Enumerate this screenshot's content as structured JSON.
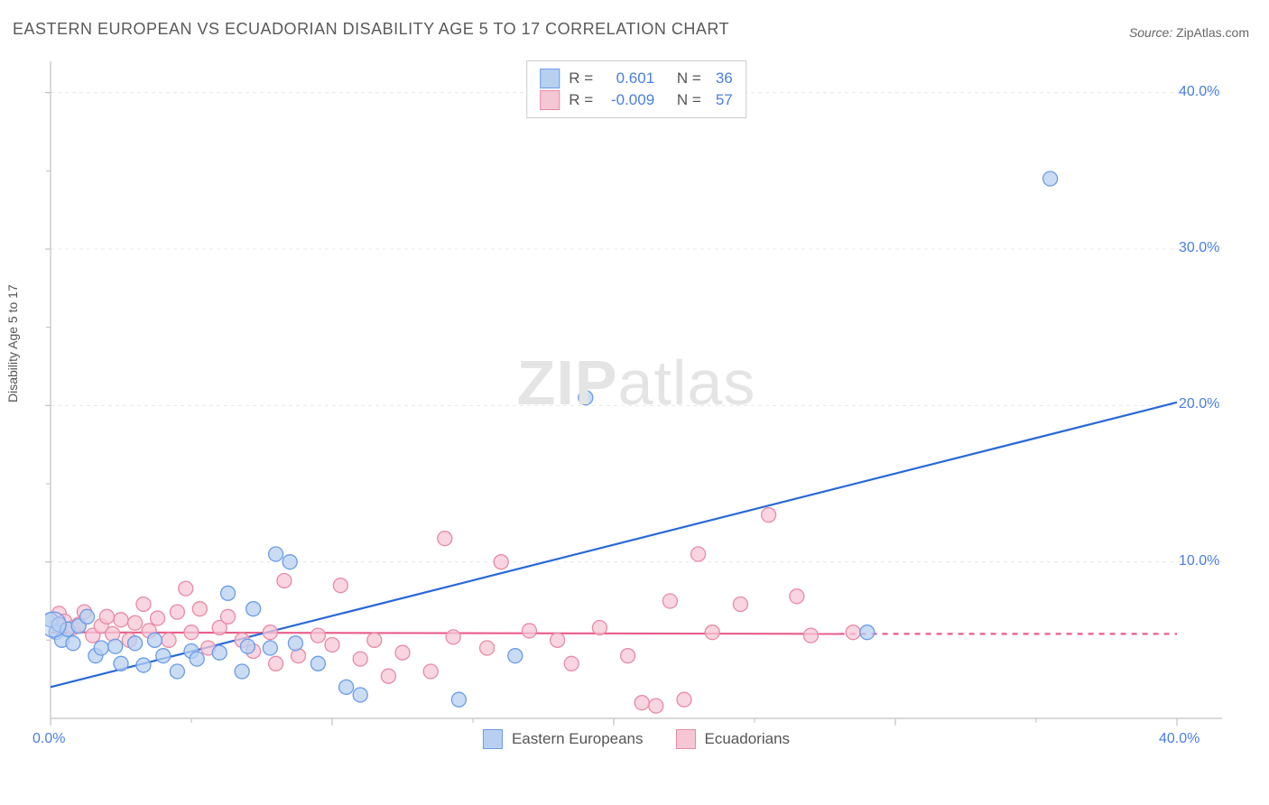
{
  "title": "EASTERN EUROPEAN VS ECUADORIAN DISABILITY AGE 5 TO 17 CORRELATION CHART",
  "source_label": "Source:",
  "source_name": "ZipAtlas.com",
  "watermark_zip": "ZIP",
  "watermark_atlas": "atlas",
  "y_axis_label": "Disability Age 5 to 17",
  "chart": {
    "type": "scatter",
    "background_color": "#ffffff",
    "grid_color": "#e8e8e8",
    "axis_line_color": "#c0c0c0",
    "tick_color": "#c0c0c0",
    "xlim": [
      0,
      40
    ],
    "ylim": [
      0,
      42
    ],
    "x_ticks": [
      0,
      10,
      20,
      30,
      40
    ],
    "x_tick_labels": [
      "0.0%",
      "",
      "",
      "",
      "40.0%"
    ],
    "y_ticks": [
      10,
      20,
      30,
      40
    ],
    "y_tick_labels": [
      "10.0%",
      "20.0%",
      "30.0%",
      "40.0%"
    ],
    "x_minor_ticks": [
      5,
      15,
      25,
      35
    ],
    "y_minor_ticks": [
      5,
      15,
      25,
      35
    ],
    "series": {
      "eastern": {
        "label": "Eastern Europeans",
        "fill_color": "#b8d0f0",
        "stroke_color": "#6b9be8",
        "marker_radius": 8,
        "marker_opacity": 0.75,
        "R_label": "R =",
        "R_value": "0.601",
        "N_label": "N =",
        "N_value": "36",
        "trend": {
          "x1": 0,
          "y1": 2.0,
          "x2": 40,
          "y2": 20.2,
          "color": "#2968d9",
          "width": 2.2
        },
        "points": [
          [
            0.0,
            6.3
          ],
          [
            0.2,
            5.5
          ],
          [
            0.3,
            6.0
          ],
          [
            0.4,
            5.0
          ],
          [
            0.6,
            5.7
          ],
          [
            0.8,
            4.8
          ],
          [
            1.0,
            5.9
          ],
          [
            1.3,
            6.5
          ],
          [
            1.6,
            4.0
          ],
          [
            1.8,
            4.5
          ],
          [
            2.3,
            4.6
          ],
          [
            2.5,
            3.5
          ],
          [
            3.0,
            4.8
          ],
          [
            3.3,
            3.4
          ],
          [
            3.7,
            5.0
          ],
          [
            4.0,
            4.0
          ],
          [
            4.5,
            3.0
          ],
          [
            5.0,
            4.3
          ],
          [
            5.2,
            3.8
          ],
          [
            6.0,
            4.2
          ],
          [
            6.3,
            8.0
          ],
          [
            6.8,
            3.0
          ],
          [
            7.0,
            4.6
          ],
          [
            7.2,
            7.0
          ],
          [
            7.8,
            4.5
          ],
          [
            8.0,
            10.5
          ],
          [
            8.5,
            10.0
          ],
          [
            8.7,
            4.8
          ],
          [
            9.5,
            3.5
          ],
          [
            10.5,
            2.0
          ],
          [
            11.0,
            1.5
          ],
          [
            14.5,
            1.2
          ],
          [
            16.5,
            4.0
          ],
          [
            19.0,
            20.5
          ],
          [
            29.0,
            5.5
          ],
          [
            35.5,
            34.5
          ]
        ]
      },
      "ecuador": {
        "label": "Ecuadorians",
        "fill_color": "#f5c7d5",
        "stroke_color": "#e88aa5",
        "marker_radius": 8,
        "marker_opacity": 0.75,
        "R_label": "R =",
        "R_value": "-0.009",
        "N_label": "N =",
        "N_value": "57",
        "trend": {
          "x1": 0,
          "y1": 5.5,
          "x2": 28,
          "y2": 5.4,
          "color": "#e85d8a",
          "width": 2.2,
          "dash_from_x": 28,
          "dash_to_x": 40
        },
        "points": [
          [
            0.3,
            6.7
          ],
          [
            0.5,
            6.2
          ],
          [
            0.8,
            5.8
          ],
          [
            1.0,
            6.0
          ],
          [
            1.2,
            6.8
          ],
          [
            1.5,
            5.3
          ],
          [
            1.8,
            5.9
          ],
          [
            2.0,
            6.5
          ],
          [
            2.2,
            5.4
          ],
          [
            2.5,
            6.3
          ],
          [
            2.8,
            5.0
          ],
          [
            3.0,
            6.1
          ],
          [
            3.3,
            7.3
          ],
          [
            3.5,
            5.6
          ],
          [
            3.8,
            6.4
          ],
          [
            4.2,
            5.0
          ],
          [
            4.5,
            6.8
          ],
          [
            4.8,
            8.3
          ],
          [
            5.0,
            5.5
          ],
          [
            5.3,
            7.0
          ],
          [
            5.6,
            4.5
          ],
          [
            6.0,
            5.8
          ],
          [
            6.3,
            6.5
          ],
          [
            6.8,
            5.0
          ],
          [
            7.2,
            4.3
          ],
          [
            7.8,
            5.5
          ],
          [
            8.0,
            3.5
          ],
          [
            8.3,
            8.8
          ],
          [
            8.8,
            4.0
          ],
          [
            9.5,
            5.3
          ],
          [
            10.0,
            4.7
          ],
          [
            10.3,
            8.5
          ],
          [
            11.0,
            3.8
          ],
          [
            11.5,
            5.0
          ],
          [
            12.0,
            2.7
          ],
          [
            12.5,
            4.2
          ],
          [
            13.5,
            3.0
          ],
          [
            14.0,
            11.5
          ],
          [
            14.3,
            5.2
          ],
          [
            15.5,
            4.5
          ],
          [
            16.0,
            10.0
          ],
          [
            17.0,
            5.6
          ],
          [
            18.0,
            5.0
          ],
          [
            18.5,
            3.5
          ],
          [
            19.5,
            5.8
          ],
          [
            20.5,
            4.0
          ],
          [
            21.0,
            1.0
          ],
          [
            21.5,
            0.8
          ],
          [
            22.0,
            7.5
          ],
          [
            22.5,
            1.2
          ],
          [
            23.0,
            10.5
          ],
          [
            23.5,
            5.5
          ],
          [
            24.5,
            7.3
          ],
          [
            25.5,
            13.0
          ],
          [
            26.5,
            7.8
          ],
          [
            27.0,
            5.3
          ],
          [
            28.5,
            5.5
          ]
        ]
      }
    }
  }
}
